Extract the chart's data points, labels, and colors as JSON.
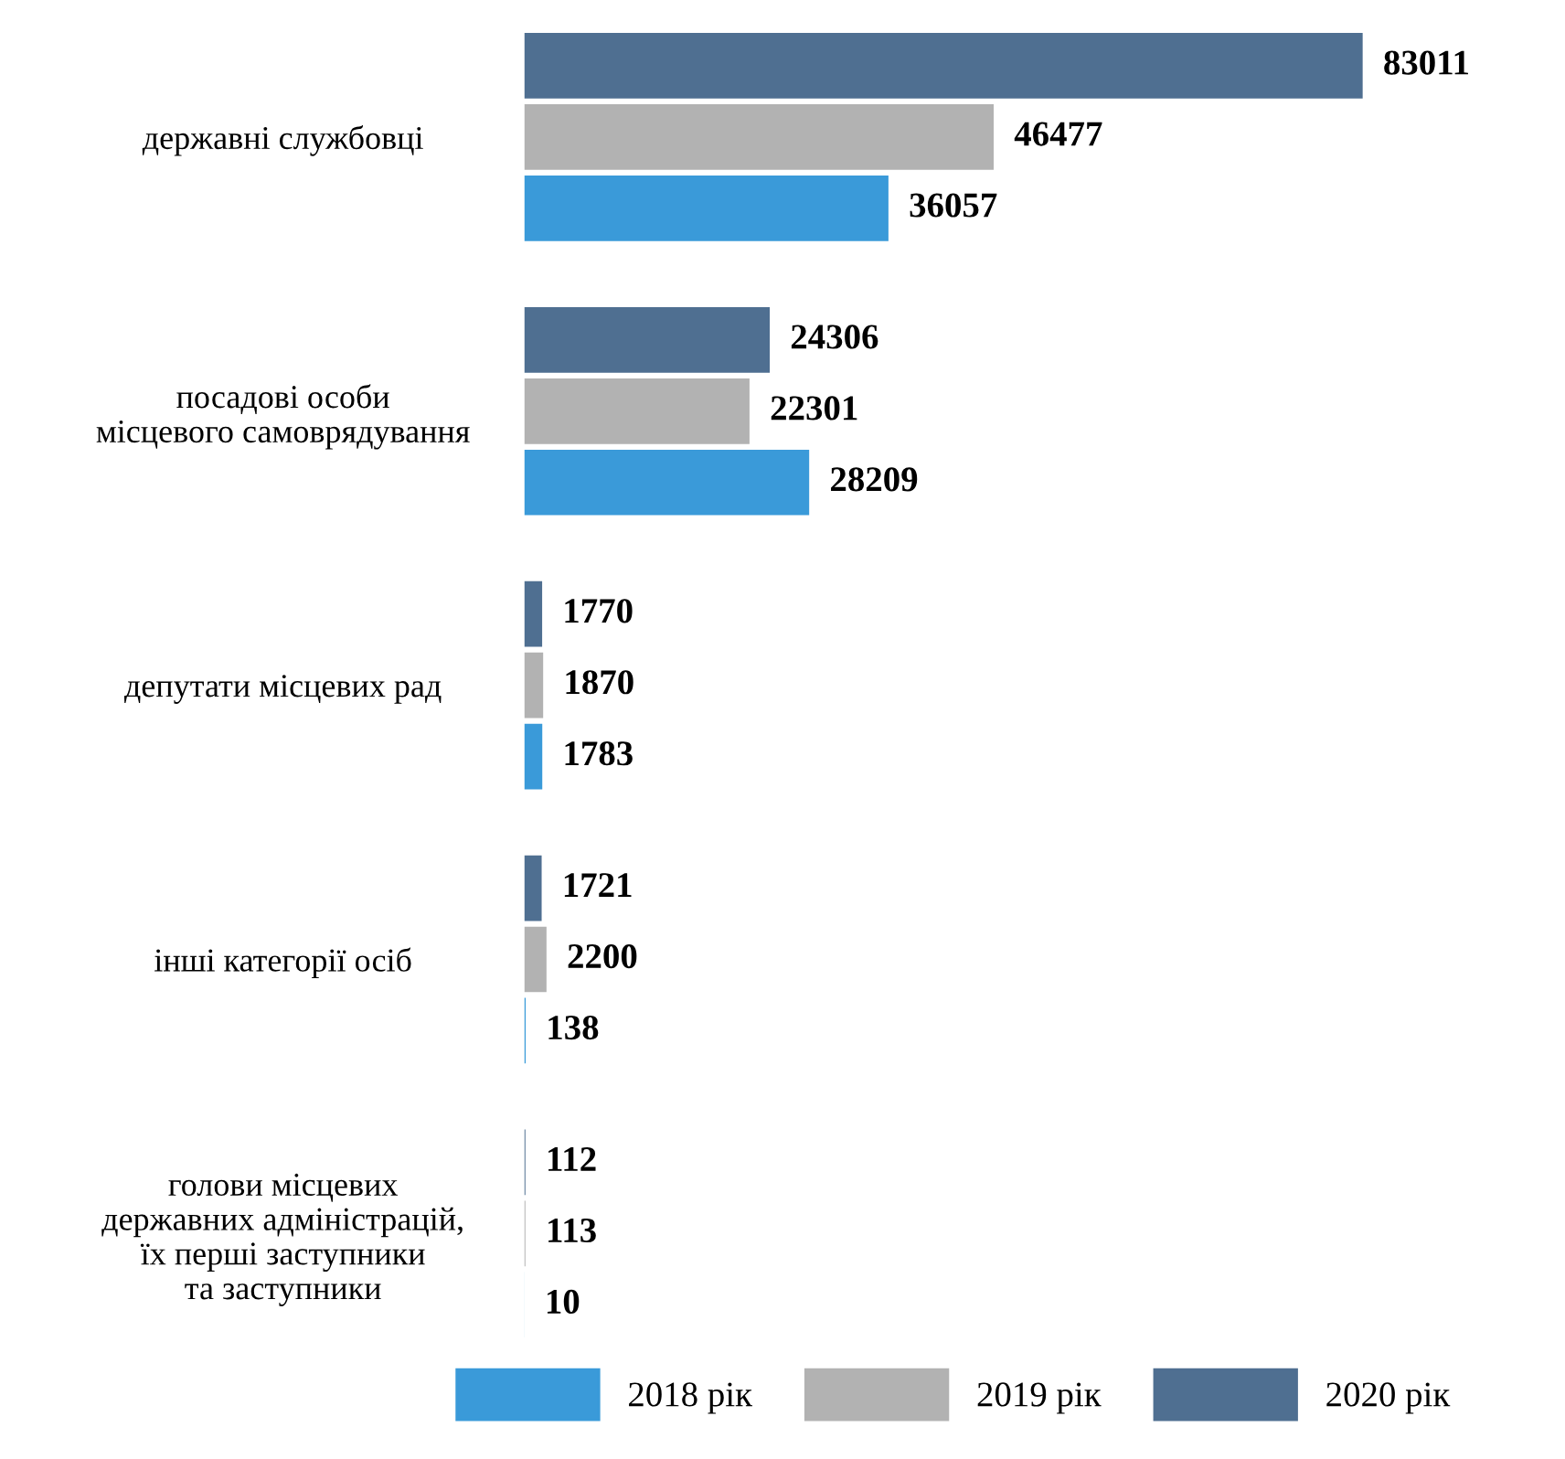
{
  "chart_data": {
    "type": "bar",
    "orientation": "horizontal",
    "data_labels": true,
    "legend": "bottom right",
    "grid": false,
    "categories": [
      "державні службовці",
      "посадові особи\nмісцевого самоврядування",
      "депутати місцевих рад",
      "інші категорії осіб",
      "голови місцевих\nдержавних адміністрацій,\nїх перші заступники\nта заступники"
    ],
    "series": [
      {
        "name": "2018 рік",
        "color": "#3a9ad9",
        "values": [
          36057,
          28209,
          1783,
          138,
          10
        ]
      },
      {
        "name": "2019 рік",
        "color": "#b2b2b2",
        "values": [
          46477,
          22301,
          1870,
          2200,
          113
        ]
      },
      {
        "name": "2020 рік",
        "color": "#4f6f91",
        "values": [
          83011,
          24306,
          1770,
          1721,
          112
        ]
      }
    ]
  }
}
